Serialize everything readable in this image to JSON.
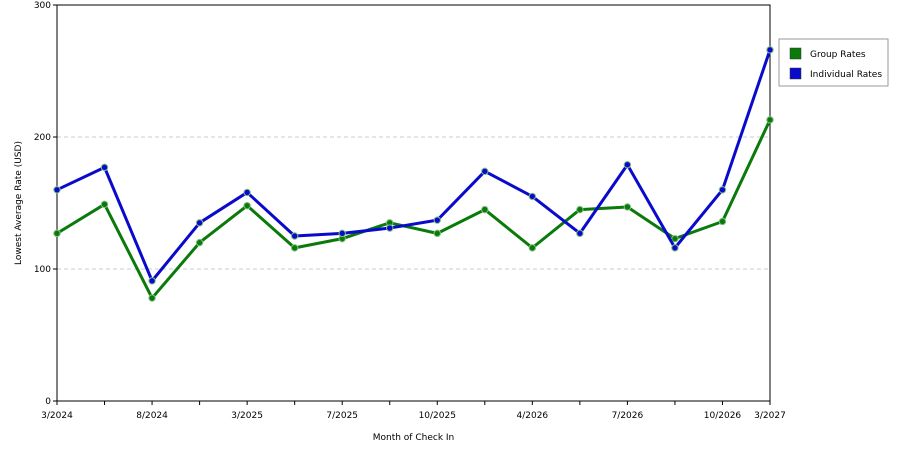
{
  "chart_data": {
    "type": "line",
    "xlabel": "Month of Check In",
    "ylabel": "Lowest Average Rate (USD)",
    "ylim": [
      0,
      300
    ],
    "yticks": [
      0,
      100,
      200,
      300
    ],
    "grid": "horizontal dashed",
    "legend_position": "top-right",
    "x_tick_labels": [
      "3/2024",
      "8/2024",
      "3/2025",
      "7/2025",
      "10/2025",
      "4/2026",
      "7/2026",
      "10/2026",
      "3/2027"
    ],
    "x_tick_indices": [
      0,
      2,
      4,
      6,
      8,
      10,
      12,
      14,
      15
    ],
    "num_points": 16,
    "series": [
      {
        "name": "Group Rates",
        "color": "#0a7a0a",
        "values": [
          127,
          149,
          78,
          120,
          148,
          116,
          123,
          135,
          127,
          145,
          116,
          145,
          147,
          123,
          136,
          213
        ]
      },
      {
        "name": "Individual Rates",
        "color": "#0a0acc",
        "values": [
          160,
          177,
          91,
          135,
          158,
          125,
          127,
          131,
          137,
          174,
          155,
          127,
          179,
          116,
          160,
          266
        ]
      }
    ]
  }
}
